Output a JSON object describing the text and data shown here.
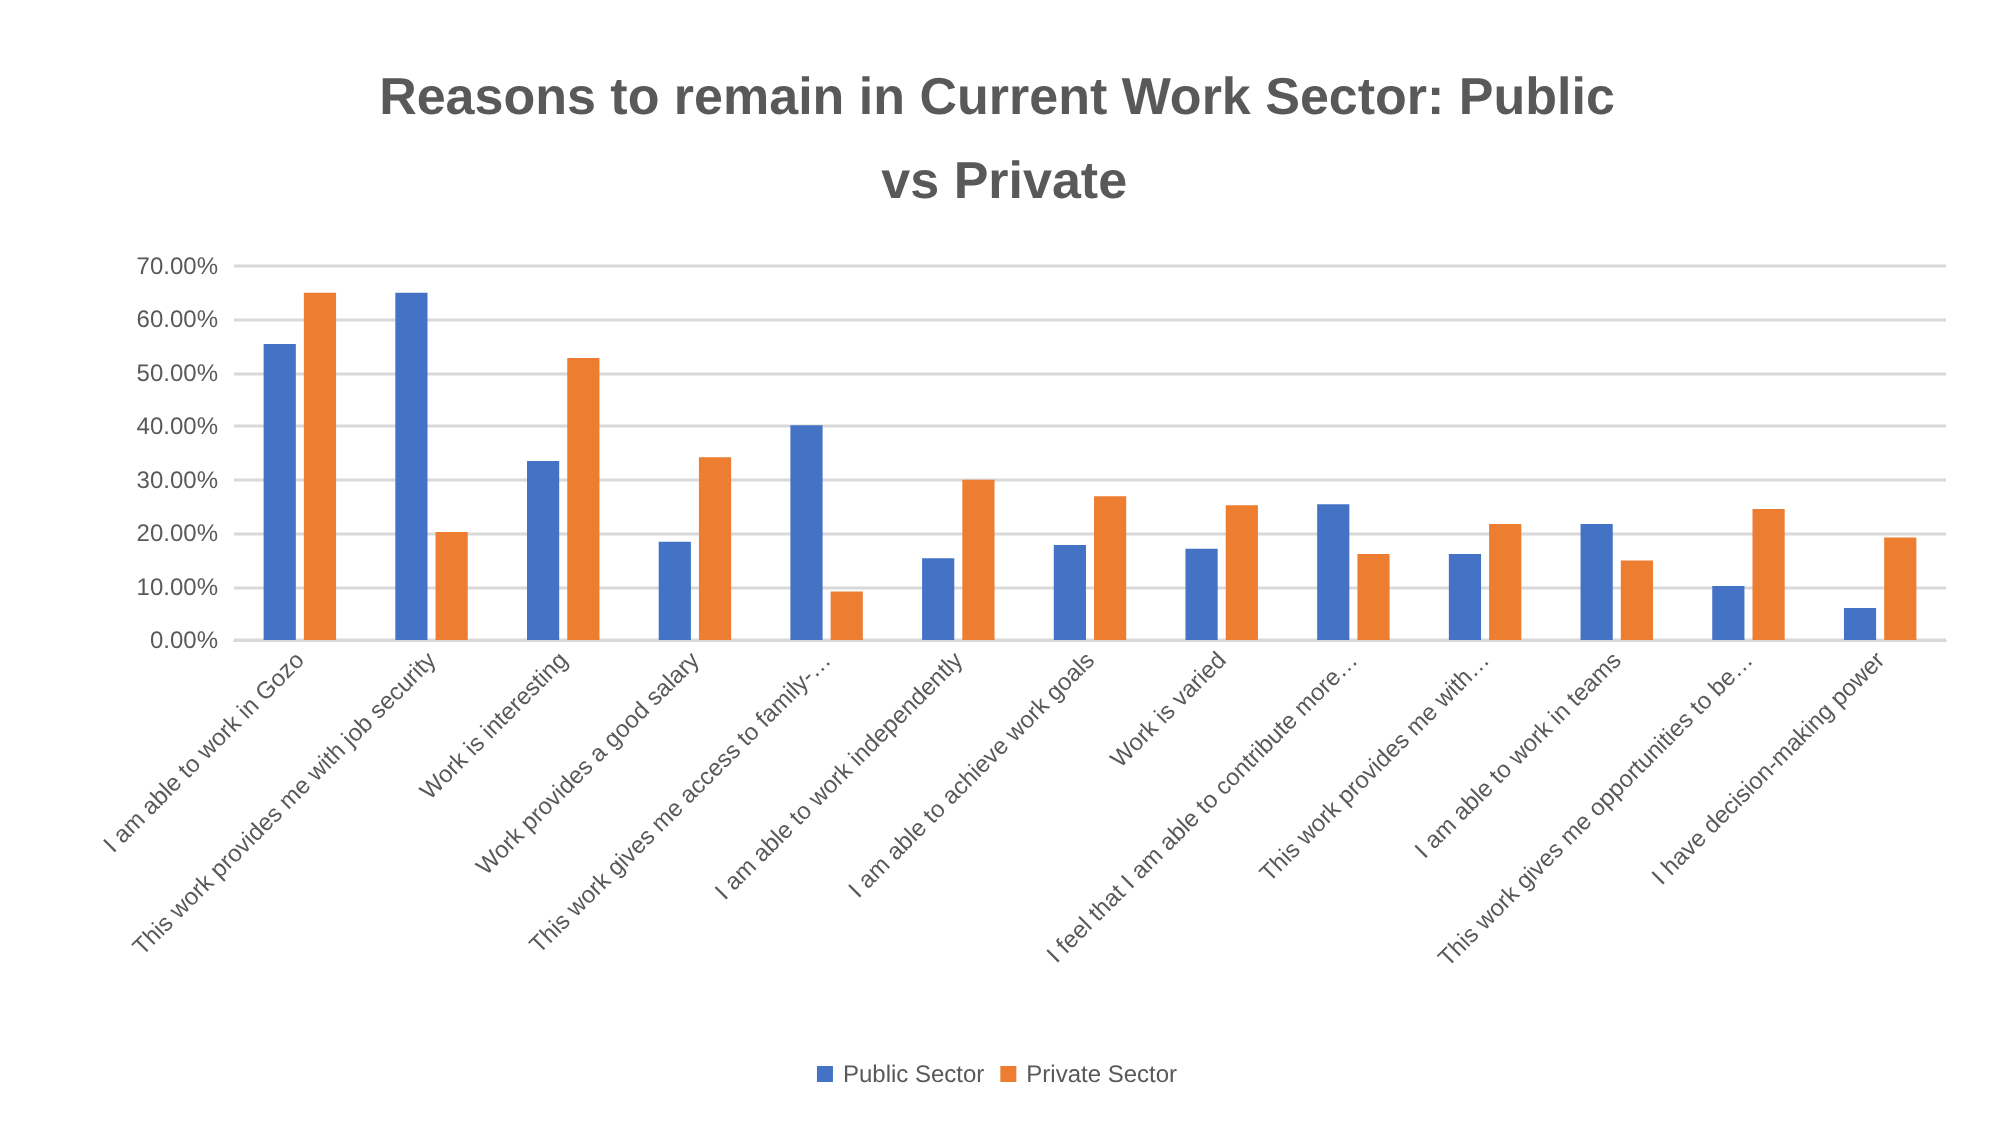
{
  "chart_data": {
    "type": "bar",
    "title": "Reasons to remain in Current Work Sector: Public vs Private",
    "categories": [
      "I am able to work in Gozo",
      "This work provides me with job security",
      "Work is interesting",
      "Work provides a good salary",
      "This work gives me access to family-…",
      "I am able to work independently",
      "I am able to achieve work goals",
      "Work is varied",
      "I feel that I am able to contribute more…",
      "This work provides me with…",
      "I am able to work in teams",
      "This work gives me opportunities to be…",
      "I have decision-making power"
    ],
    "series": [
      {
        "name": "Public Sector",
        "color": "#4472c4",
        "values": [
          55.4,
          65.0,
          33.5,
          18.4,
          40.2,
          15.3,
          17.8,
          17.1,
          25.4,
          16.1,
          21.7,
          10.1,
          6.0
        ]
      },
      {
        "name": "Private Sector",
        "color": "#ed7d31",
        "values": [
          65.0,
          20.2,
          52.8,
          34.2,
          9.1,
          30.0,
          26.9,
          25.2,
          16.1,
          21.7,
          14.9,
          24.5,
          19.2
        ]
      }
    ],
    "ylim": [
      0,
      70
    ],
    "yticks": [
      {
        "value": 0,
        "label": "0.00%"
      },
      {
        "value": 10,
        "label": "10.00%"
      },
      {
        "value": 20,
        "label": "20.00%"
      },
      {
        "value": 30,
        "label": "30.00%"
      },
      {
        "value": 40,
        "label": "40.00%"
      },
      {
        "value": 50,
        "label": "50.00%"
      },
      {
        "value": 60,
        "label": "60.00%"
      },
      {
        "value": 70,
        "label": "70.00%"
      }
    ],
    "grid": "y",
    "legend": "bottom"
  }
}
